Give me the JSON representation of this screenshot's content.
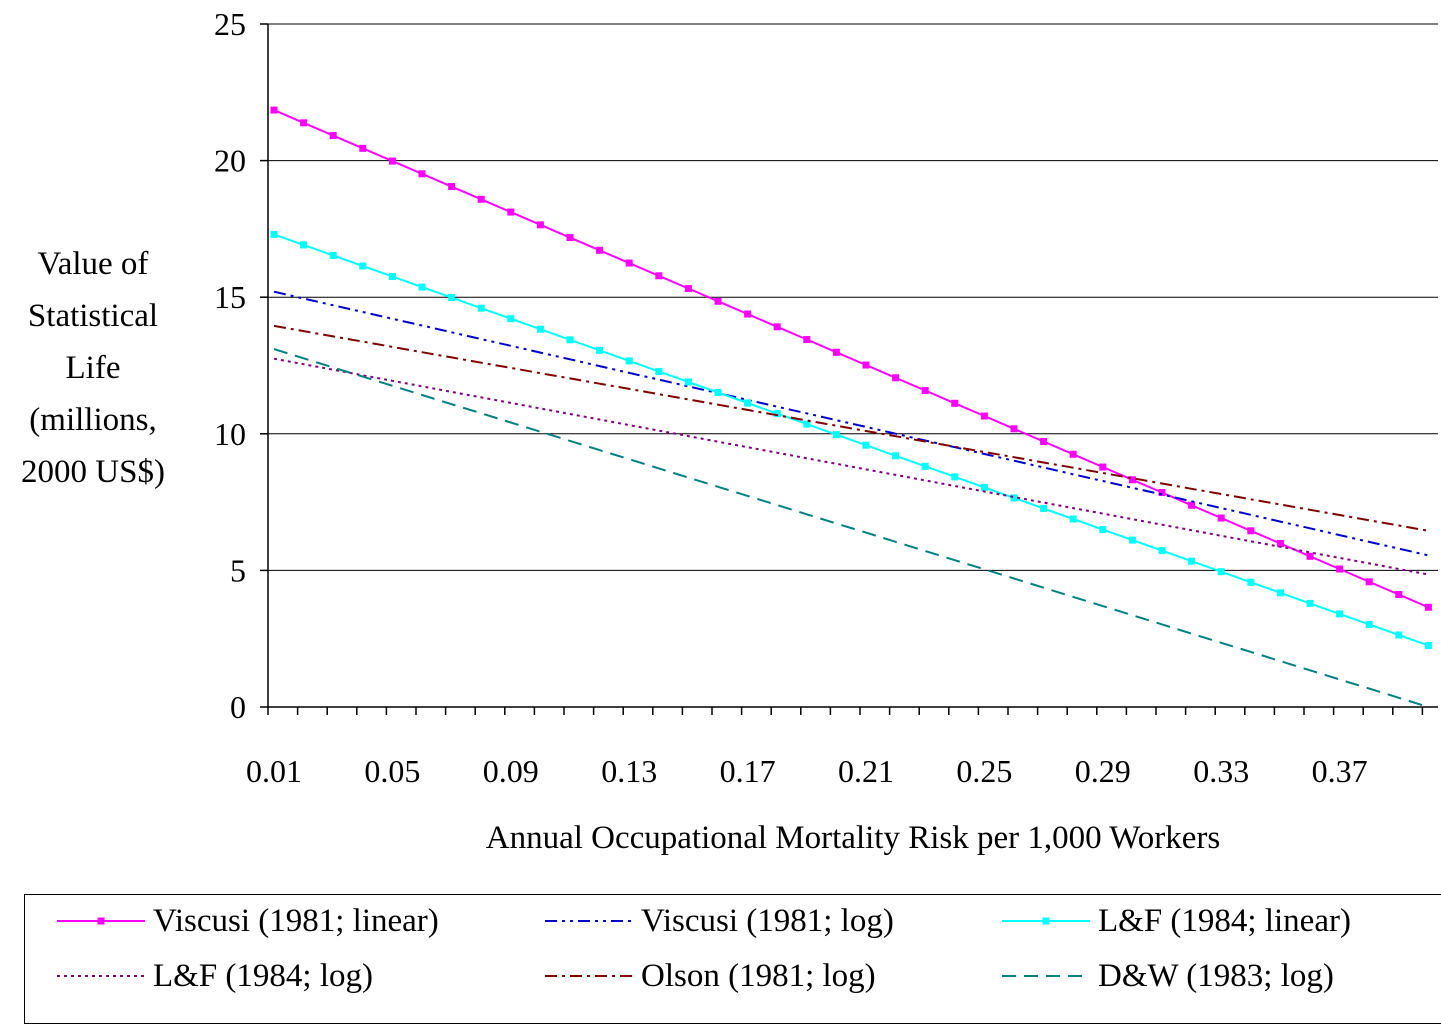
{
  "chart_data": {
    "type": "line",
    "title": "",
    "ylabel_lines": [
      "Value of",
      "Statistical",
      "Life",
      "(millions,",
      "2000 US$)"
    ],
    "xlabel": "Annual Occupational Mortality Risk per 1,000 Workers",
    "ylim": [
      0,
      25
    ],
    "yticks": [
      "0",
      "5",
      "10",
      "15",
      "20",
      "25"
    ],
    "xticks": [
      "0.01",
      "0.05",
      "0.09",
      "0.13",
      "0.17",
      "0.21",
      "0.25",
      "0.29",
      "0.33",
      "0.37"
    ],
    "x_range": [
      0.01,
      0.4
    ],
    "grid": "horizontal",
    "legend_placement": "bottom",
    "series": [
      {
        "name": "Viscusi (1981; linear)",
        "color": "#ff00ff",
        "style": "solid",
        "marker": "square",
        "x0": 0.01,
        "x1": 0.4,
        "y0": 21.85,
        "y1": 3.65
      },
      {
        "name": "Viscusi (1981; log)",
        "color": "#0000cc",
        "style": "dashdotdot",
        "marker": "none",
        "x0": 0.01,
        "x1": 0.4,
        "y0": 15.2,
        "y1": 5.55
      },
      {
        "name": "L&F (1984; linear)",
        "color": "#00ffff",
        "style": "solid",
        "marker": "square",
        "x0": 0.01,
        "x1": 0.4,
        "y0": 17.3,
        "y1": 2.25
      },
      {
        "name": "L&F (1984; log)",
        "color": "#800080",
        "style": "dotted",
        "marker": "none",
        "x0": 0.01,
        "x1": 0.4,
        "y0": 12.75,
        "y1": 4.85
      },
      {
        "name": "Olson (1981; log)",
        "color": "#800000",
        "style": "dashdot",
        "marker": "none",
        "x0": 0.01,
        "x1": 0.4,
        "y0": 13.95,
        "y1": 6.45
      },
      {
        "name": "D&W (1983; log)",
        "color": "#008080",
        "style": "dashed",
        "marker": "none",
        "x0": 0.01,
        "x1": 0.4,
        "y0": 13.1,
        "y1": 0.0
      }
    ]
  }
}
